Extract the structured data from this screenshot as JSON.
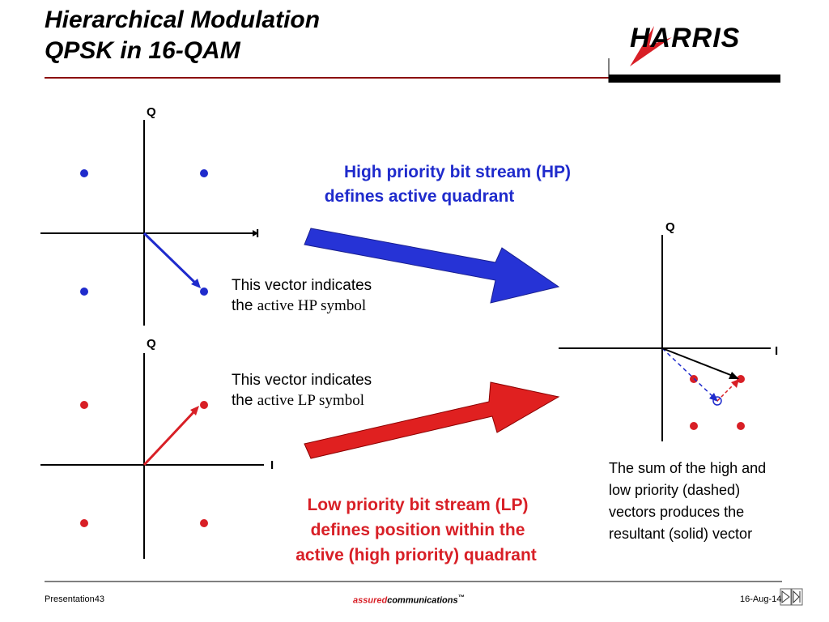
{
  "header": {
    "title_line1": "Hierarchical Modulation",
    "title_line2": "QPSK in 16-QAM",
    "logo_text": "HARRIS"
  },
  "hp_caption": {
    "line1": "High priority bit stream (HP)",
    "line2": "defines active quadrant"
  },
  "lp_caption": {
    "line1": "Low priority bit stream (LP)",
    "line2": "defines position within the",
    "line3": "active (high priority) quadrant"
  },
  "hp_note": {
    "line1": "This vector indicates",
    "prefix": "the ",
    "emph": "active HP symbol"
  },
  "lp_note": {
    "line1": "This vector indicates",
    "prefix": "the ",
    "emph": "active LP symbol"
  },
  "sum_note": {
    "line1": "The sum of the high and",
    "line2": "low priority (dashed)",
    "line3": "vectors produces the",
    "line4": "resultant (solid) vector"
  },
  "axes": {
    "q_label": "Q",
    "i_label": "I"
  },
  "footer": {
    "left": "Presentation43",
    "brand_assured": "assured",
    "brand_comm": "communications",
    "brand_tm": "™",
    "date": "16-Aug-14"
  },
  "colors": {
    "hp_blue": "#1f2bcc",
    "lp_red": "#d81f26",
    "title_rule": "#8b0000"
  }
}
